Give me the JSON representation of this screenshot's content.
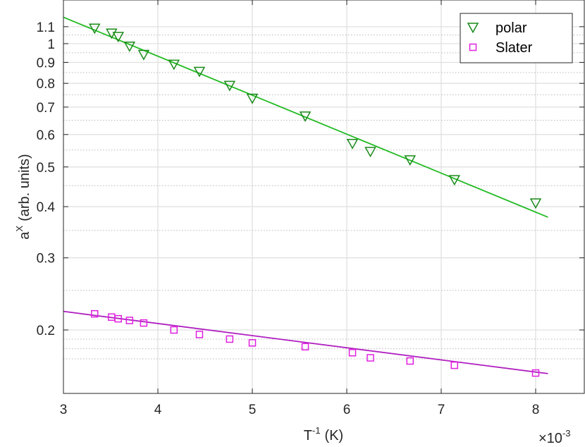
{
  "chart_data": {
    "type": "scatter",
    "xlabel": {
      "base": "T",
      "sup": "-1",
      "unit": "(K)"
    },
    "ylabel": {
      "base": "a",
      "sup": "X",
      "unit": "(arb. units)"
    },
    "x_multiplier": {
      "prefix": "×10",
      "exp": "-3"
    },
    "xlim": [
      3,
      8.5
    ],
    "ylim": [
      0.16,
      1.15
    ],
    "yscale": "log",
    "grid": true,
    "legend_position": "top-right",
    "x_ticks": [
      3,
      4,
      5,
      6,
      7,
      8
    ],
    "x_tick_labels": [
      "3",
      "4",
      "5",
      "6",
      "7",
      "8"
    ],
    "y_ticks": [
      0.2,
      0.3,
      0.4,
      0.5,
      0.6,
      0.7,
      0.8,
      0.9,
      1,
      1.1
    ],
    "y_tick_labels": [
      "0.2",
      "0.3",
      "0.4",
      "0.5",
      "0.6",
      "0.7",
      "0.8",
      "0.9",
      "1",
      "1.1"
    ],
    "series": [
      {
        "name": "polar",
        "marker": "triangle-down",
        "color": "#1a8a1a",
        "fit_color": "#22bb22",
        "x": [
          3.33,
          3.51,
          3.58,
          3.7,
          3.85,
          4.17,
          4.44,
          4.76,
          5.0,
          5.56,
          6.06,
          6.25,
          6.67,
          7.14,
          8.0
        ],
        "y": [
          1.09,
          1.06,
          1.04,
          0.985,
          0.94,
          0.89,
          0.855,
          0.79,
          0.735,
          0.665,
          0.57,
          0.545,
          0.52,
          0.465,
          0.408
        ],
        "fit": {
          "x": [
            3.0,
            8.13
          ],
          "y": [
            1.16,
            0.377
          ]
        }
      },
      {
        "name": "Slater",
        "marker": "square",
        "color": "#e020e0",
        "fit_color": "#b020c0",
        "x": [
          3.33,
          3.51,
          3.58,
          3.7,
          3.85,
          4.17,
          4.44,
          4.76,
          5.0,
          5.56,
          6.06,
          6.25,
          6.67,
          7.14,
          8.0
        ],
        "y": [
          0.219,
          0.215,
          0.213,
          0.211,
          0.208,
          0.2,
          0.195,
          0.19,
          0.186,
          0.182,
          0.176,
          0.171,
          0.168,
          0.164,
          0.157
        ],
        "fit": {
          "x": [
            3.0,
            8.13
          ],
          "y": [
            0.222,
            0.1565
          ]
        }
      }
    ]
  }
}
